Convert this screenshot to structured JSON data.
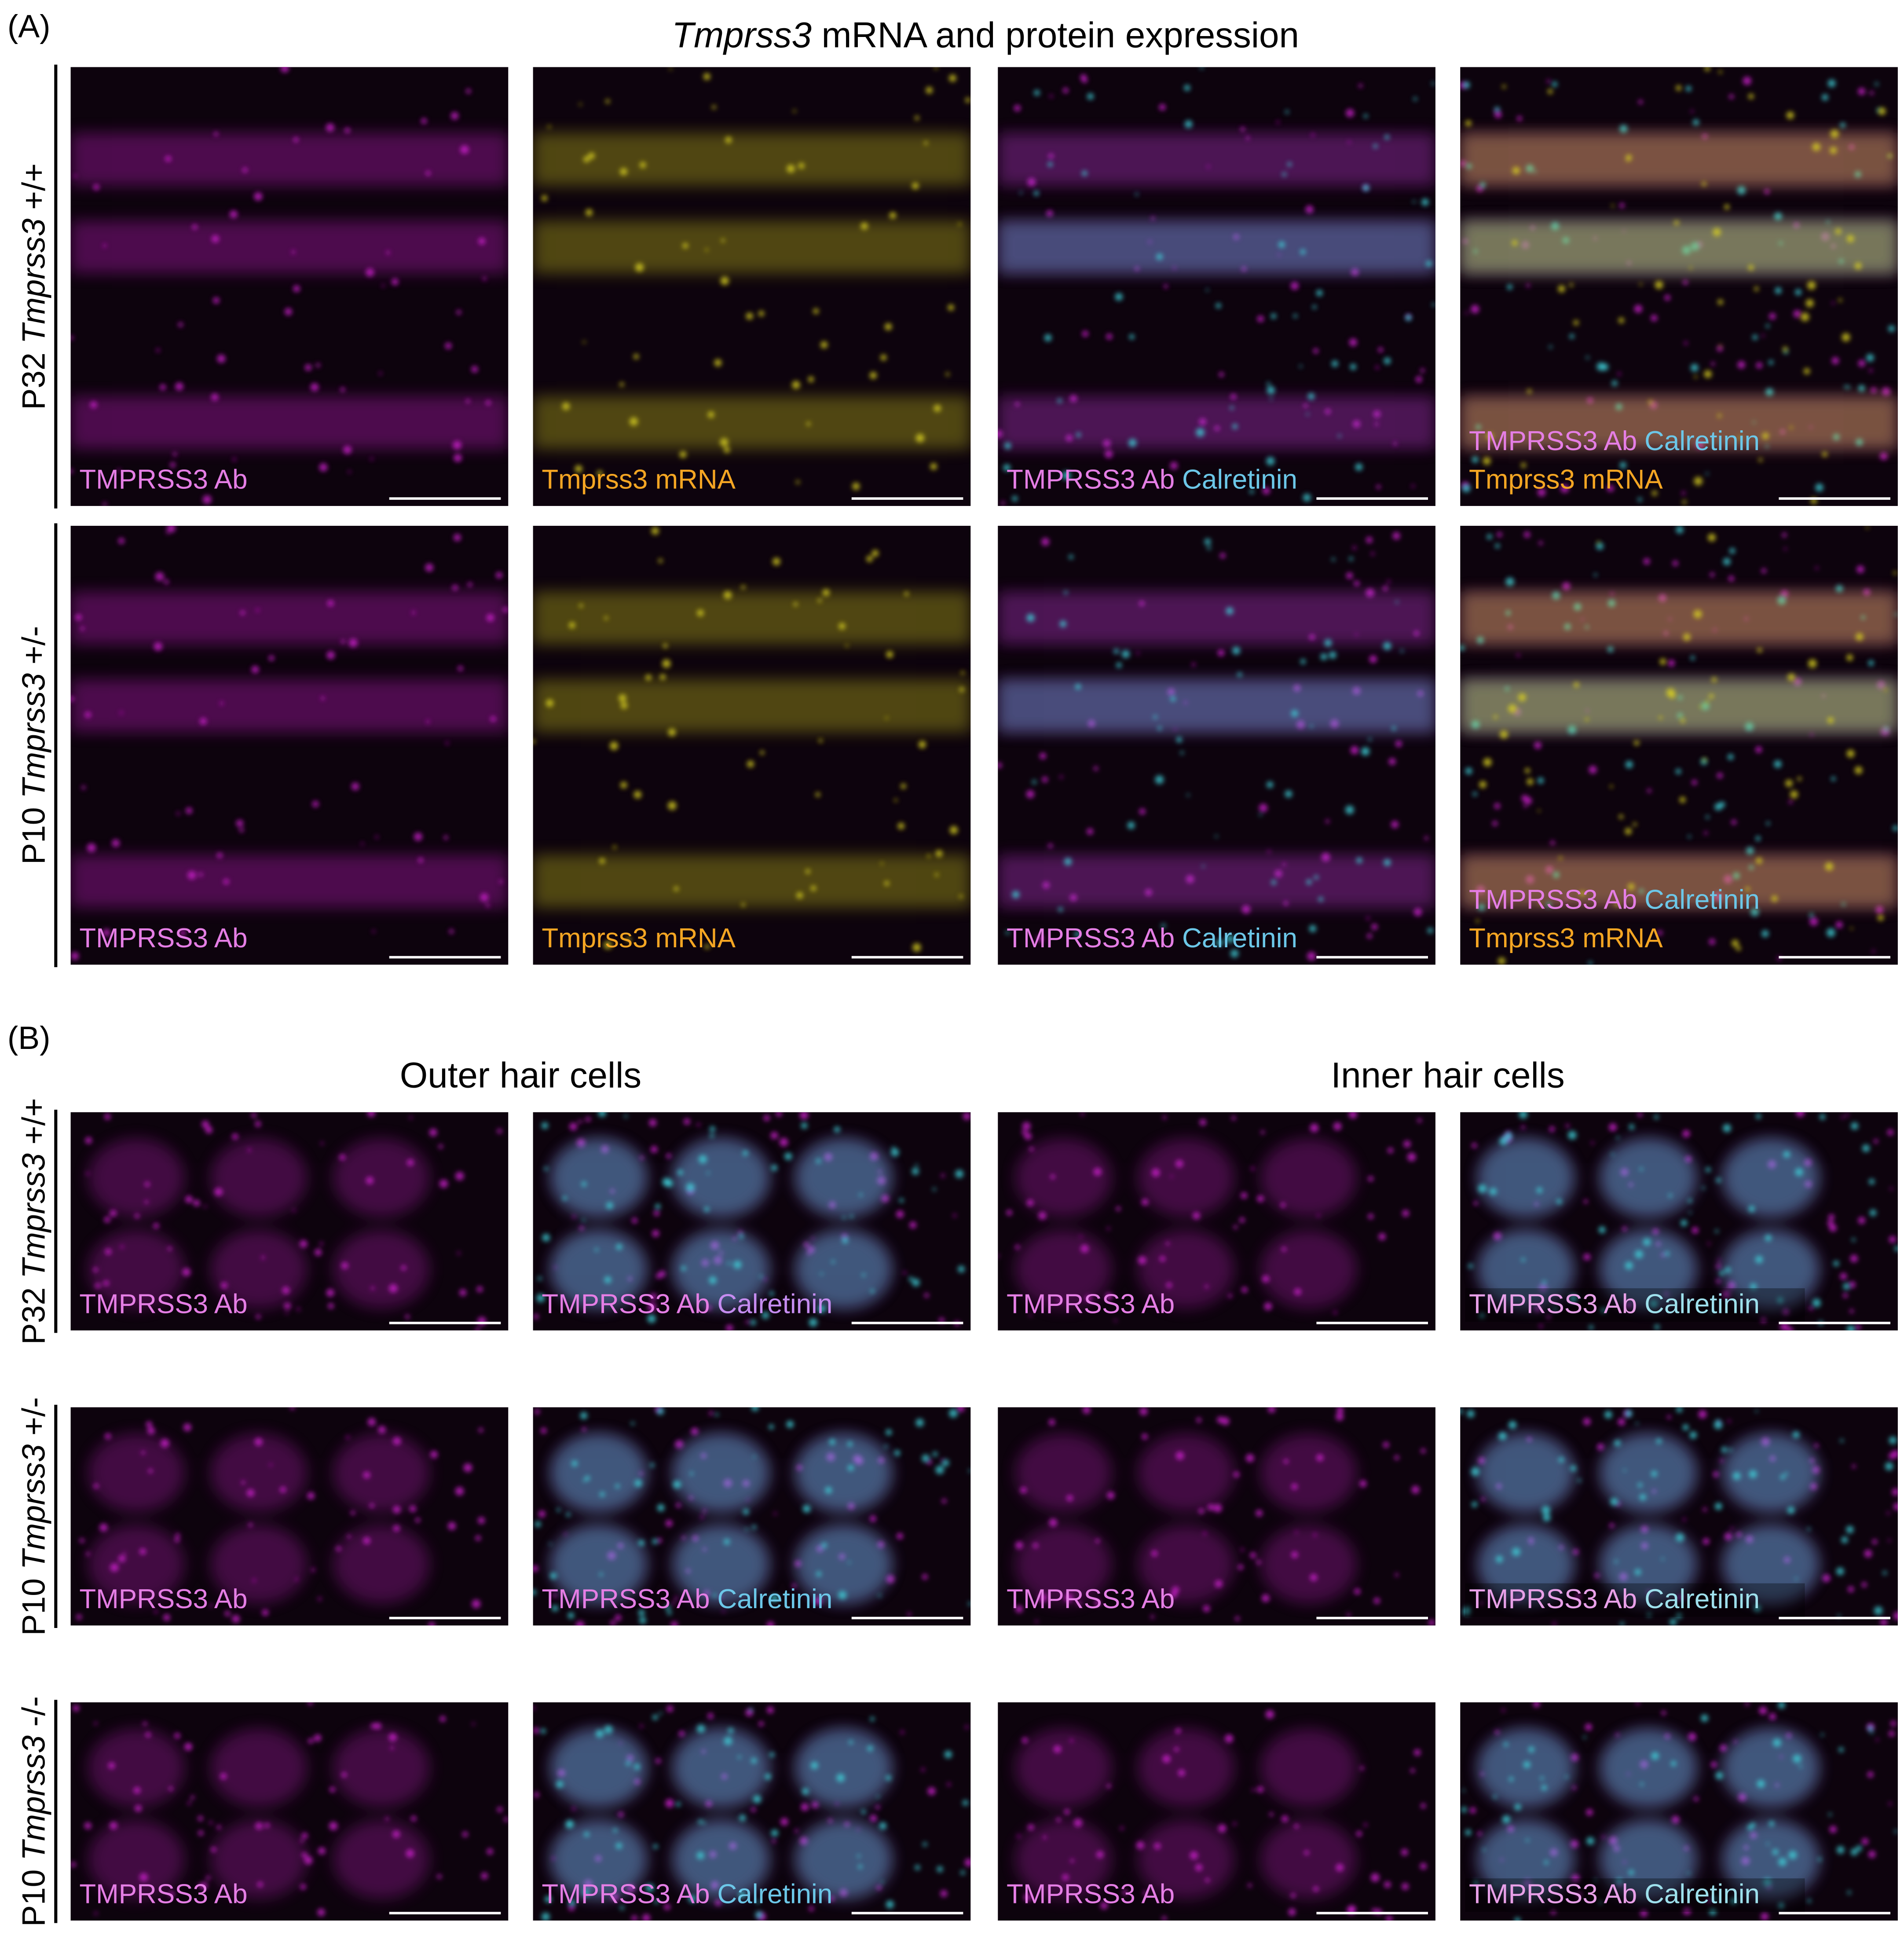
{
  "panel_a": {
    "letter": "(A)",
    "title": {
      "italic": "Tmprss3",
      "rest": "mRNA and protein expression"
    },
    "rows": [
      {
        "label": {
          "prefix": "P32",
          "gene": "Tmprss3",
          "genotype": "+/+"
        },
        "panels": [
          [
            [
              {
                "text": "TMPRSS3 Ab",
                "color": "#e57ee5"
              }
            ]
          ],
          [
            [
              {
                "text": "Tmprss3 mRNA",
                "color": "#f5a623"
              }
            ]
          ],
          [
            [
              {
                "text": "TMPRSS3 Ab",
                "color": "#e57ee5"
              },
              {
                "text": "Calretinin",
                "color": "#6cc7e8"
              }
            ]
          ],
          [
            [
              {
                "text": "TMPRSS3 Ab",
                "color": "#e57ee5"
              },
              {
                "text": "Calretinin",
                "color": "#6cc7e8"
              }
            ],
            [
              {
                "text": "Tmprss3 mRNA",
                "color": "#f5a623"
              }
            ]
          ]
        ]
      },
      {
        "label": {
          "prefix": "P10",
          "gene": "Tmprss3",
          "genotype": "+/-"
        },
        "panels": [
          [
            [
              {
                "text": "TMPRSS3 Ab",
                "color": "#e57ee5"
              }
            ]
          ],
          [
            [
              {
                "text": "Tmprss3 mRNA",
                "color": "#f5a623"
              }
            ]
          ],
          [
            [
              {
                "text": "TMPRSS3 Ab",
                "color": "#e57ee5"
              },
              {
                "text": "Calretinin",
                "color": "#6cc7e8"
              }
            ]
          ],
          [
            [
              {
                "text": "TMPRSS3 Ab",
                "color": "#e57ee5"
              },
              {
                "text": "Calretinin",
                "color": "#6cc7e8"
              }
            ],
            [
              {
                "text": "Tmprss3 mRNA",
                "color": "#f5a623"
              }
            ]
          ]
        ]
      }
    ]
  },
  "panel_b": {
    "letter": "(B)",
    "headings": [
      "Outer hair cells",
      "Inner hair cells"
    ],
    "rows": [
      {
        "label": {
          "prefix": "P32",
          "gene": "Tmprss3",
          "genotype": "+/+"
        },
        "panels": [
          [
            [
              {
                "text": "TMPRSS3 Ab",
                "color": "#e57ee5"
              }
            ]
          ],
          [
            [
              {
                "text": "TMPRSS3 Ab",
                "color": "#e57ee5"
              },
              {
                "text": "Calretinin",
                "color": "#c58cf0"
              }
            ]
          ],
          [
            [
              {
                "text": "TMPRSS3 Ab",
                "color": "#e57ee5"
              }
            ]
          ],
          [
            [
              {
                "text": "TMPRSS3 Ab",
                "color": "#e8a0e8"
              },
              {
                "text": "Calretinin",
                "color": "#9ee0ec"
              }
            ]
          ]
        ]
      },
      {
        "label": {
          "prefix": "P10",
          "gene": "Tmprss3",
          "genotype": "+/-"
        },
        "panels": [
          [
            [
              {
                "text": "TMPRSS3 Ab",
                "color": "#e57ee5"
              }
            ]
          ],
          [
            [
              {
                "text": "TMPRSS3 Ab",
                "color": "#e57ee5"
              },
              {
                "text": "Calretinin",
                "color": "#6cc7e8"
              }
            ]
          ],
          [
            [
              {
                "text": "TMPRSS3 Ab",
                "color": "#e57ee5"
              }
            ]
          ],
          [
            [
              {
                "text": "TMPRSS3 Ab",
                "color": "#e8a0e8"
              },
              {
                "text": "Calretinin",
                "color": "#9ee0ec"
              }
            ]
          ]
        ]
      },
      {
        "label": {
          "prefix": "P10",
          "gene": "Tmprss3",
          "genotype": "-/-"
        },
        "panels": [
          [
            [
              {
                "text": "TMPRSS3 Ab",
                "color": "#e57ee5"
              }
            ]
          ],
          [
            [
              {
                "text": "TMPRSS3 Ab",
                "color": "#e57ee5"
              },
              {
                "text": "Calretinin",
                "color": "#6cc7e8"
              }
            ]
          ],
          [
            [
              {
                "text": "TMPRSS3 Ab",
                "color": "#e57ee5"
              }
            ]
          ],
          [
            [
              {
                "text": "TMPRSS3 Ab",
                "color": "#e8a0e8"
              },
              {
                "text": "Calretinin",
                "color": "#9ee0ec"
              }
            ]
          ]
        ]
      }
    ]
  }
}
